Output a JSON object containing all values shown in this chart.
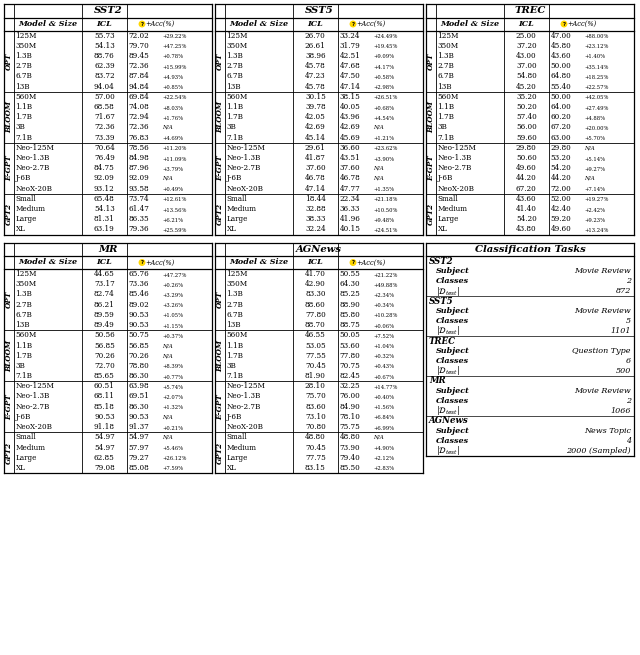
{
  "sst2": {
    "title": "SST2",
    "groups": [
      {
        "name": "OPT",
        "rows": [
          [
            "125M",
            "55.73",
            "72.02",
            "+29.22%"
          ],
          [
            "350M",
            "54.13",
            "79.70",
            "+47.25%"
          ],
          [
            "1.3B",
            "88.76",
            "89.45",
            "+0.78%"
          ],
          [
            "2.7B",
            "62.39",
            "72.36",
            "+15.99%"
          ],
          [
            "6.7B",
            "83.72",
            "87.84",
            "+4.93%"
          ],
          [
            "13B",
            "94.04",
            "94.84",
            "+0.85%"
          ]
        ]
      },
      {
        "name": "BLOOM",
        "rows": [
          [
            "560M",
            "57.00",
            "69.84",
            "+22.54%"
          ],
          [
            "1.1B",
            "68.58",
            "74.08",
            "+8.03%"
          ],
          [
            "1.7B",
            "71.67",
            "72.94",
            "+1.76%"
          ],
          [
            "3B",
            "72.36",
            "72.36",
            "N/A"
          ],
          [
            "7.1B",
            "73.39",
            "76.83",
            "+4.69%"
          ]
        ]
      },
      {
        "name": "E-GPT",
        "rows": [
          [
            "Neo-125M",
            "70.64",
            "78.56",
            "+11.20%"
          ],
          [
            "Neo-1.3B",
            "76.49",
            "84.98",
            "+11.09%"
          ],
          [
            "Neo-2.7B",
            "84.75",
            "87.96",
            "+3.79%"
          ],
          [
            "J-6B",
            "92.09",
            "92.09",
            "N/A"
          ],
          [
            "NeoX-20B",
            "93.12",
            "93.58",
            "+0.49%"
          ]
        ]
      },
      {
        "name": "GPT2",
        "rows": [
          [
            "Small",
            "65.48",
            "73.74",
            "+12.61%"
          ],
          [
            "Medium",
            "54.13",
            "61.47",
            "+13.56%"
          ],
          [
            "Large",
            "81.31",
            "86.35",
            "+6.21%"
          ],
          [
            "XL",
            "63.19",
            "79.36",
            "+25.59%"
          ]
        ]
      }
    ]
  },
  "sst5": {
    "title": "SST5",
    "groups": [
      {
        "name": "OPT",
        "rows": [
          [
            "125M",
            "26.70",
            "33.24",
            "+24.49%"
          ],
          [
            "350M",
            "26.61",
            "31.79",
            "+19.45%"
          ],
          [
            "1.3B",
            "38.96",
            "42.51",
            "+9.09%"
          ],
          [
            "2.7B",
            "45.78",
            "47.68",
            "+4.17%"
          ],
          [
            "6.7B",
            "47.23",
            "47.50",
            "+0.58%"
          ],
          [
            "13B",
            "45.78",
            "47.14",
            "+2.98%"
          ]
        ]
      },
      {
        "name": "BLOOM",
        "rows": [
          [
            "560M",
            "30.15",
            "38.15",
            "+26.51%"
          ],
          [
            "1.1B",
            "39.78",
            "40.05",
            "+0.68%"
          ],
          [
            "1.7B",
            "42.05",
            "43.96",
            "+4.54%"
          ],
          [
            "3B",
            "42.69",
            "42.69",
            "N/A"
          ],
          [
            "7.1B",
            "45.14",
            "45.69",
            "+1.21%"
          ]
        ]
      },
      {
        "name": "E-GPT",
        "rows": [
          [
            "Neo-125M",
            "29.61",
            "36.60",
            "+23.62%"
          ],
          [
            "Neo-1.3B",
            "41.87",
            "43.51",
            "+3.90%"
          ],
          [
            "Neo-2.7B",
            "37.60",
            "37.60",
            "N/A"
          ],
          [
            "J-6B",
            "46.78",
            "46.78",
            "N/A"
          ],
          [
            "NeoX-20B",
            "47.14",
            "47.77",
            "+1.35%"
          ]
        ]
      },
      {
        "name": "GPT2",
        "rows": [
          [
            "Small",
            "18.44",
            "22.34",
            "+21.18%"
          ],
          [
            "Medium",
            "32.88",
            "36.33",
            "+10.50%"
          ],
          [
            "Large",
            "38.33",
            "41.96",
            "+9.48%"
          ],
          [
            "XL",
            "32.24",
            "40.15",
            "+24.51%"
          ]
        ]
      }
    ]
  },
  "trec": {
    "title": "TREC",
    "groups": [
      {
        "name": "OPT",
        "rows": [
          [
            "125M",
            "25.00",
            "47.00",
            "+88.00%"
          ],
          [
            "350M",
            "37.20",
            "45.80",
            "+23.12%"
          ],
          [
            "1.3B",
            "43.00",
            "43.60",
            "+1.40%"
          ],
          [
            "2.7B",
            "37.00",
            "50.00",
            "+35.14%"
          ],
          [
            "6.7B",
            "54.80",
            "64.80",
            "+18.25%"
          ],
          [
            "13B",
            "45.20",
            "55.40",
            "+22.57%"
          ]
        ]
      },
      {
        "name": "BLOOM",
        "rows": [
          [
            "560M",
            "35.20",
            "50.00",
            "+42.05%"
          ],
          [
            "1.1B",
            "50.20",
            "64.00",
            "+27.49%"
          ],
          [
            "1.7B",
            "57.40",
            "60.20",
            "+4.88%"
          ],
          [
            "3B",
            "56.00",
            "67.20",
            "+20.00%"
          ],
          [
            "7.1B",
            "59.60",
            "63.00",
            "+5.70%"
          ]
        ]
      },
      {
        "name": "E-GPT",
        "rows": [
          [
            "Neo-125M",
            "29.80",
            "29.80",
            "N/A"
          ],
          [
            "Neo-1.3B",
            "50.60",
            "53.20",
            "+5.14%"
          ],
          [
            "Neo-2.7B",
            "49.60",
            "54.20",
            "+9.27%"
          ],
          [
            "J-6B",
            "44.20",
            "44.20",
            "N/A"
          ],
          [
            "NeoX-20B",
            "67.20",
            "72.00",
            "+7.14%"
          ]
        ]
      },
      {
        "name": "GPT2",
        "rows": [
          [
            "Small",
            "43.60",
            "52.00",
            "+19.27%"
          ],
          [
            "Medium",
            "41.40",
            "42.40",
            "+2.42%"
          ],
          [
            "Large",
            "54.20",
            "59.20",
            "+9.23%"
          ],
          [
            "XL",
            "43.80",
            "49.60",
            "+13.24%"
          ]
        ]
      }
    ]
  },
  "mr": {
    "title": "MR",
    "groups": [
      {
        "name": "OPT",
        "rows": [
          [
            "125M",
            "44.65",
            "65.76",
            "+47.27%"
          ],
          [
            "350M",
            "73.17",
            "73.36",
            "+0.26%"
          ],
          [
            "1.3B",
            "82.74",
            "85.46",
            "+3.29%"
          ],
          [
            "2.7B",
            "86.21",
            "89.02",
            "+3.26%"
          ],
          [
            "6.7B",
            "89.59",
            "90.53",
            "+1.05%"
          ],
          [
            "13B",
            "89.49",
            "90.53",
            "+1.15%"
          ]
        ]
      },
      {
        "name": "BLOOM",
        "rows": [
          [
            "560M",
            "50.56",
            "50.75",
            "+0.37%"
          ],
          [
            "1.1B",
            "56.85",
            "56.85",
            "N/A"
          ],
          [
            "1.7B",
            "70.26",
            "70.26",
            "N/A"
          ],
          [
            "3B",
            "72.70",
            "78.80",
            "+8.39%"
          ],
          [
            "7.1B",
            "85.65",
            "86.30",
            "+0.77%"
          ]
        ]
      },
      {
        "name": "E-GPT",
        "rows": [
          [
            "Neo-125M",
            "60.51",
            "63.98",
            "+5.74%"
          ],
          [
            "Neo-1.3B",
            "68.11",
            "69.51",
            "+2.07%"
          ],
          [
            "Neo-2.7B",
            "85.18",
            "86.30",
            "+1.32%"
          ],
          [
            "J-6B",
            "90.53",
            "90.53",
            "N/A"
          ],
          [
            "NeoX-20B",
            "91.18",
            "91.37",
            "+0.21%"
          ]
        ]
      },
      {
        "name": "GPT2",
        "rows": [
          [
            "Small",
            "54.97",
            "54.97",
            "N/A"
          ],
          [
            "Medium",
            "54.97",
            "57.97",
            "+5.46%"
          ],
          [
            "Large",
            "62.85",
            "79.27",
            "+26.12%"
          ],
          [
            "XL",
            "79.08",
            "85.08",
            "+7.59%"
          ]
        ]
      }
    ]
  },
  "agnews": {
    "title": "AGNews",
    "groups": [
      {
        "name": "OPT",
        "rows": [
          [
            "125M",
            "41.70",
            "50.55",
            "+21.22%"
          ],
          [
            "350M",
            "42.90",
            "64.30",
            "+49.88%"
          ],
          [
            "1.3B",
            "83.30",
            "85.25",
            "+2.34%"
          ],
          [
            "2.7B",
            "88.60",
            "88.90",
            "+0.34%"
          ],
          [
            "6.7B",
            "77.80",
            "85.80",
            "+10.28%"
          ],
          [
            "13B",
            "88.70",
            "88.75",
            "+0.06%"
          ]
        ]
      },
      {
        "name": "BLOOM",
        "rows": [
          [
            "560M",
            "46.55",
            "50.05",
            "+7.52%"
          ],
          [
            "1.1B",
            "53.05",
            "53.60",
            "+1.04%"
          ],
          [
            "1.7B",
            "77.55",
            "77.80",
            "+0.32%"
          ],
          [
            "3B",
            "70.45",
            "70.75",
            "+0.43%"
          ],
          [
            "7.1B",
            "81.90",
            "82.45",
            "+0.67%"
          ]
        ]
      },
      {
        "name": "E-GPT",
        "rows": [
          [
            "Neo-125M",
            "28.10",
            "32.25",
            "+14.77%"
          ],
          [
            "Neo-1.3B",
            "75.70",
            "76.00",
            "+0.40%"
          ],
          [
            "Neo-2.7B",
            "83.60",
            "84.90",
            "+1.56%"
          ],
          [
            "J-6B",
            "73.10",
            "78.10",
            "+6.84%"
          ],
          [
            "NeoX-20B",
            "70.80",
            "75.75",
            "+6.99%"
          ]
        ]
      },
      {
        "name": "GPT2",
        "rows": [
          [
            "Small",
            "48.80",
            "48.80",
            "N/A"
          ],
          [
            "Medium",
            "70.45",
            "73.90",
            "+4.90%"
          ],
          [
            "Large",
            "77.75",
            "79.40",
            "+2.12%"
          ],
          [
            "XL",
            "83.15",
            "85.50",
            "+2.83%"
          ]
        ]
      }
    ]
  },
  "classification_tasks": {
    "title": "Classification Tasks",
    "tasks": [
      {
        "name": "SST2",
        "subject": "Movie Review",
        "classes": "2",
        "d_test": "872"
      },
      {
        "name": "SST5",
        "subject": "Movie Review",
        "classes": "5",
        "d_test": "1101"
      },
      {
        "name": "TREC",
        "subject": "Question Type",
        "classes": "6",
        "d_test": "500"
      },
      {
        "name": "MR",
        "subject": "Movie Review",
        "classes": "2",
        "d_test": "1066"
      },
      {
        "name": "AGNews",
        "subject": "News Topic",
        "classes": "4",
        "d_test": "2000 (Sampled)"
      }
    ]
  }
}
